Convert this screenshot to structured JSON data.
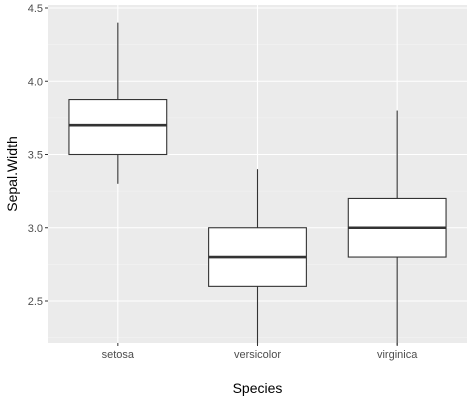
{
  "chart_data": {
    "type": "box",
    "xlabel": "Species",
    "ylabel": "Sepal.Width",
    "ylim": [
      2.14,
      4.5
    ],
    "yticks": [
      2.5,
      3.0,
      3.5,
      4.0,
      4.5
    ],
    "ytick_labels": [
      "2.5",
      "3.0",
      "3.5",
      "4.0",
      "4.5"
    ],
    "categories": [
      "setosa",
      "versicolor",
      "virginica"
    ],
    "grid": true,
    "legend": "none",
    "colors": {
      "panel_background": "#ebebeb",
      "grid_major": "#ffffff",
      "grid_minor": "#f5f5f5",
      "box_fill": "#ffffff",
      "box_stroke": "#333333",
      "tick_label": "#4d4d4d",
      "tick_mark": "#333333",
      "axis_title": "#000000"
    },
    "boxes": [
      {
        "category": "setosa",
        "lower_whisker": 3.3,
        "q1": 3.5,
        "median": 3.7,
        "q3": 3.875,
        "upper_whisker": 4.4,
        "outliers": []
      },
      {
        "category": "versicolor",
        "lower_whisker": 2.2,
        "q1": 2.6,
        "median": 2.8,
        "q3": 3.0,
        "upper_whisker": 3.4,
        "outliers": []
      },
      {
        "category": "virginica",
        "lower_whisker": 2.2,
        "q1": 2.8,
        "median": 3.0,
        "q3": 3.2,
        "upper_whisker": 3.8,
        "outliers": []
      }
    ]
  }
}
